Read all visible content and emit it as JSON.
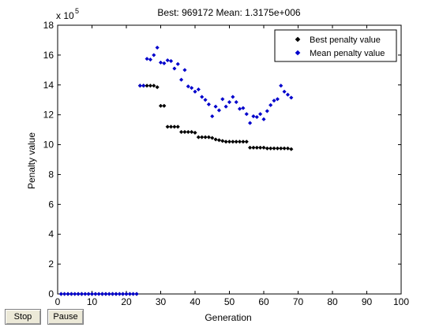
{
  "buttons": {
    "stop_label": "Stop",
    "pause_label": "Pause"
  },
  "colors": {
    "best": "#000000",
    "mean": "#0000cc",
    "axes": "#000000",
    "background": "#ffffff"
  },
  "chart_data": {
    "type": "scatter",
    "title": "Best: 969172 Mean: 1.3175e+006",
    "xlabel": "Generation",
    "ylabel": "Penalty value",
    "exponent_label": "x 10",
    "exponent_power": "5",
    "xlim": [
      0,
      100
    ],
    "ylim": [
      0,
      18
    ],
    "xticks": [
      0,
      10,
      20,
      30,
      40,
      50,
      60,
      70,
      80,
      90,
      100
    ],
    "yticks": [
      0,
      2,
      4,
      6,
      8,
      10,
      12,
      14,
      16,
      18
    ],
    "legend_position": "top-right",
    "grid": false,
    "series": [
      {
        "name": "Best penalty value",
        "marker": "diamond",
        "points": [
          [
            1,
            0
          ],
          [
            2,
            0
          ],
          [
            3,
            0
          ],
          [
            4,
            0
          ],
          [
            5,
            0
          ],
          [
            6,
            0
          ],
          [
            7,
            0
          ],
          [
            8,
            0
          ],
          [
            9,
            0
          ],
          [
            10,
            0
          ],
          [
            11,
            0
          ],
          [
            12,
            0
          ],
          [
            13,
            0
          ],
          [
            14,
            0
          ],
          [
            15,
            0
          ],
          [
            16,
            0
          ],
          [
            17,
            0
          ],
          [
            18,
            0
          ],
          [
            19,
            0
          ],
          [
            20,
            0
          ],
          [
            21,
            0
          ],
          [
            22,
            0
          ],
          [
            23,
            0
          ],
          [
            24,
            13.95
          ],
          [
            25,
            13.95
          ],
          [
            26,
            13.95
          ],
          [
            27,
            13.95
          ],
          [
            28,
            13.95
          ],
          [
            29,
            13.85
          ],
          [
            30,
            12.6
          ],
          [
            31,
            12.6
          ],
          [
            32,
            11.2
          ],
          [
            33,
            11.2
          ],
          [
            34,
            11.2
          ],
          [
            35,
            11.2
          ],
          [
            36,
            10.85
          ],
          [
            37,
            10.85
          ],
          [
            38,
            10.85
          ],
          [
            39,
            10.85
          ],
          [
            40,
            10.8
          ],
          [
            41,
            10.5
          ],
          [
            42,
            10.5
          ],
          [
            43,
            10.5
          ],
          [
            44,
            10.5
          ],
          [
            45,
            10.45
          ],
          [
            46,
            10.35
          ],
          [
            47,
            10.3
          ],
          [
            48,
            10.25
          ],
          [
            49,
            10.2
          ],
          [
            50,
            10.2
          ],
          [
            51,
            10.2
          ],
          [
            52,
            10.2
          ],
          [
            53,
            10.2
          ],
          [
            54,
            10.2
          ],
          [
            55,
            10.2
          ],
          [
            56,
            9.8
          ],
          [
            57,
            9.8
          ],
          [
            58,
            9.8
          ],
          [
            59,
            9.8
          ],
          [
            60,
            9.8
          ],
          [
            61,
            9.75
          ],
          [
            62,
            9.75
          ],
          [
            63,
            9.75
          ],
          [
            64,
            9.75
          ],
          [
            65,
            9.75
          ],
          [
            66,
            9.75
          ],
          [
            67,
            9.75
          ],
          [
            68,
            9.7
          ]
        ]
      },
      {
        "name": "Mean penalty value",
        "marker": "diamond",
        "points": [
          [
            1,
            0
          ],
          [
            2,
            0
          ],
          [
            3,
            0
          ],
          [
            4,
            0
          ],
          [
            5,
            0
          ],
          [
            6,
            0
          ],
          [
            7,
            0
          ],
          [
            8,
            0
          ],
          [
            9,
            0
          ],
          [
            10,
            0
          ],
          [
            11,
            0
          ],
          [
            12,
            0
          ],
          [
            13,
            0
          ],
          [
            14,
            0
          ],
          [
            15,
            0
          ],
          [
            16,
            0
          ],
          [
            17,
            0
          ],
          [
            18,
            0
          ],
          [
            19,
            0
          ],
          [
            20,
            0
          ],
          [
            21,
            0
          ],
          [
            22,
            0
          ],
          [
            23,
            0
          ],
          [
            24,
            13.95
          ],
          [
            25,
            13.95
          ],
          [
            26,
            15.75
          ],
          [
            27,
            15.7
          ],
          [
            28,
            16.0
          ],
          [
            29,
            16.5
          ],
          [
            30,
            15.5
          ],
          [
            31,
            15.45
          ],
          [
            32,
            15.65
          ],
          [
            33,
            15.6
          ],
          [
            34,
            15.1
          ],
          [
            35,
            15.4
          ],
          [
            36,
            14.35
          ],
          [
            37,
            15.0
          ],
          [
            38,
            13.9
          ],
          [
            39,
            13.8
          ],
          [
            40,
            13.55
          ],
          [
            41,
            13.7
          ],
          [
            42,
            13.2
          ],
          [
            43,
            13.0
          ],
          [
            44,
            12.7
          ],
          [
            45,
            11.9
          ],
          [
            46,
            12.55
          ],
          [
            47,
            12.3
          ],
          [
            48,
            13.05
          ],
          [
            49,
            12.55
          ],
          [
            50,
            12.85
          ],
          [
            51,
            13.2
          ],
          [
            52,
            12.85
          ],
          [
            53,
            12.4
          ],
          [
            54,
            12.45
          ],
          [
            55,
            12.05
          ],
          [
            56,
            11.45
          ],
          [
            57,
            11.9
          ],
          [
            58,
            11.85
          ],
          [
            59,
            12.05
          ],
          [
            60,
            11.7
          ],
          [
            61,
            12.25
          ],
          [
            62,
            12.65
          ],
          [
            63,
            12.95
          ],
          [
            64,
            13.05
          ],
          [
            65,
            13.95
          ],
          [
            66,
            13.55
          ],
          [
            67,
            13.35
          ],
          [
            68,
            13.15
          ]
        ]
      }
    ]
  }
}
